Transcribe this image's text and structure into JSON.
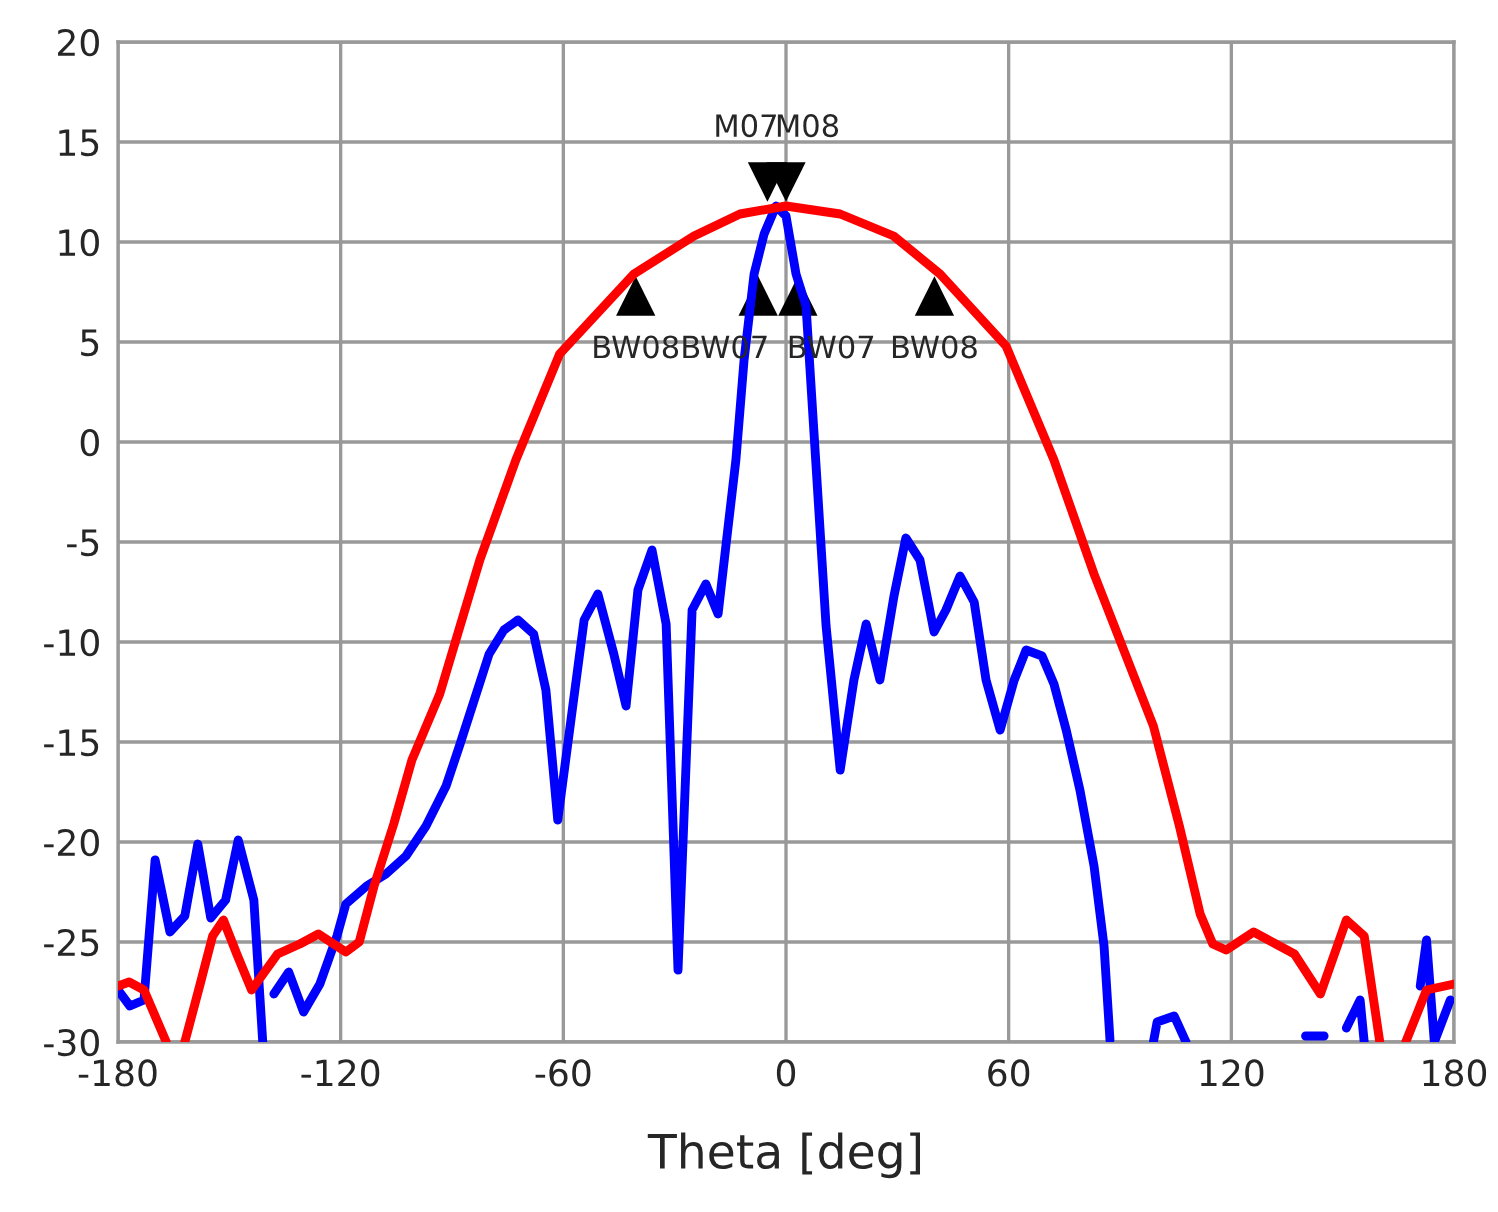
{
  "chart_data": {
    "type": "line",
    "xlabel": "Theta [deg]",
    "xlim": [
      -180,
      180
    ],
    "xticks": [
      -180,
      -120,
      -60,
      0,
      60,
      120,
      180
    ],
    "ylim": [
      -30,
      20
    ],
    "yticks": [
      -30,
      -25,
      -20,
      -15,
      -10,
      -5,
      0,
      5,
      10,
      15,
      20
    ],
    "grid": true,
    "line_style": "solid",
    "series": [
      {
        "color": "#0000ff",
        "marker": "none",
        "x": [
          -180,
          -176.8,
          -173,
          -170,
          -166,
          -162,
          -158.5,
          -155,
          -151,
          -147.6,
          -143.4,
          -141,
          -139.5,
          -138,
          -134,
          -130,
          -125.6,
          -121,
          -118.6,
          -113,
          -107.8,
          -102.4,
          -97,
          -91.6,
          -88,
          -80,
          -76,
          -72.2,
          -68,
          -64.7,
          -61.5,
          -54.4,
          -50.7,
          -46.4,
          -43.1,
          -39.9,
          -36.1,
          -32.3,
          -29.1,
          -25.3,
          -21.6,
          -18.3,
          -16.2,
          -13.5,
          -11.3,
          -8.6,
          -5.9,
          -2.7,
          0,
          2.7,
          5.4,
          8,
          10.8,
          14.6,
          18.3,
          21.6,
          25.3,
          29.1,
          32.3,
          36.1,
          39.9,
          43.1,
          46.9,
          50.7,
          53.9,
          57.7,
          61.5,
          64.7,
          69,
          72.2,
          75.5,
          79.2,
          83,
          85.7,
          87.3,
          93,
          99,
          100,
          104.6,
          107.8,
          125,
          140,
          145,
          148,
          151,
          154.7,
          155.8,
          163,
          170.9,
          172.6,
          174.7,
          179
        ],
        "values": [
          -27.4,
          -28.2,
          -27.9,
          -20.9,
          -24.5,
          -23.7,
          -20.1,
          -23.8,
          -22.9,
          -19.9,
          -22.9,
          -30,
          null,
          -27.6,
          -26.5,
          -28.5,
          -27.1,
          -24.7,
          -23.1,
          -22.2,
          -21.6,
          -20.7,
          -19.2,
          -17.2,
          -15.2,
          -10.6,
          -9.4,
          -8.9,
          -9.6,
          -12.4,
          -18.9,
          -8.9,
          -7.6,
          -10.6,
          -13.2,
          -7.4,
          -5.4,
          -9.1,
          -26.4,
          -8.4,
          -7.1,
          -8.6,
          -5.2,
          -0.9,
          4.1,
          8.4,
          10.4,
          11.8,
          11.3,
          8.4,
          6.8,
          -0.9,
          -9.2,
          -16.4,
          -11.9,
          -9.1,
          -11.9,
          -7.7,
          -4.8,
          -5.9,
          -9.5,
          -8.4,
          -6.7,
          -8,
          -11.9,
          -14.4,
          -11.9,
          -10.4,
          -10.7,
          -12.1,
          -14.4,
          -17.4,
          -21.2,
          -25.2,
          -29.9,
          null,
          -30,
          -29,
          -28.7,
          -30,
          null,
          -29.7,
          -29.7,
          null,
          -29.3,
          -27.9,
          -30,
          null,
          -27.2,
          -24.9,
          -30,
          -27.9
        ]
      },
      {
        "color": "#ff0000",
        "marker": "none",
        "x": [
          -180,
          -177,
          -173,
          -170,
          -167,
          -164.5,
          -162,
          -158,
          -154.5,
          -151.6,
          -148,
          -144,
          -137,
          -131,
          -126,
          -118.6,
          -115,
          -111,
          -105.7,
          -100.8,
          -93.3,
          -82.5,
          -72.8,
          -61,
          -41,
          -24.8,
          -12.4,
          0,
          14.6,
          29,
          41.5,
          59.3,
          72.2,
          83,
          99,
          106,
          111.6,
          115,
          118.6,
          126,
          137,
          144,
          151,
          155.8,
          160,
          163.5,
          167,
          172.6,
          180
        ],
        "values": [
          -27.2,
          -27,
          -27.4,
          -28.7,
          -30,
          null,
          -30,
          -27.2,
          -24.7,
          -23.9,
          -25.6,
          -27.4,
          -25.6,
          -25.1,
          -24.6,
          -25.5,
          -25,
          -22.2,
          -19.1,
          -15.9,
          -12.6,
          -5.9,
          -0.9,
          4.4,
          8.4,
          10.3,
          11.4,
          11.8,
          11.4,
          10.3,
          8.4,
          4.8,
          -0.9,
          -6.6,
          -14.2,
          -19.2,
          -23.6,
          -25.1,
          -25.4,
          -24.5,
          -25.6,
          -27.6,
          -23.9,
          -24.7,
          -30,
          null,
          -30,
          -27.4,
          -27.1
        ]
      },
      {
        "type": "scatter",
        "color": "#000000",
        "marker": "triangle_down",
        "x": [
          -5,
          0
        ],
        "values": [
          13,
          13
        ]
      },
      {
        "type": "scatter",
        "color": "#000000",
        "marker": "triangle",
        "x": [
          -40.5,
          -7.5,
          3.2,
          40
        ],
        "values": [
          7.3,
          7.3,
          7.3,
          7.3
        ]
      }
    ],
    "annotations": [
      {
        "text": "M07",
        "x": -5,
        "y": 13
      },
      {
        "text": "M08",
        "x": 0,
        "y": 13
      },
      {
        "text": "BW08",
        "x": -40.5,
        "y": 7.3
      },
      {
        "text": "BW07",
        "x": -7.5,
        "y": 7.3
      },
      {
        "text": "BW07",
        "x": 3.2,
        "y": 7.3
      },
      {
        "text": "BW08",
        "x": 40,
        "y": 7.3
      }
    ]
  }
}
